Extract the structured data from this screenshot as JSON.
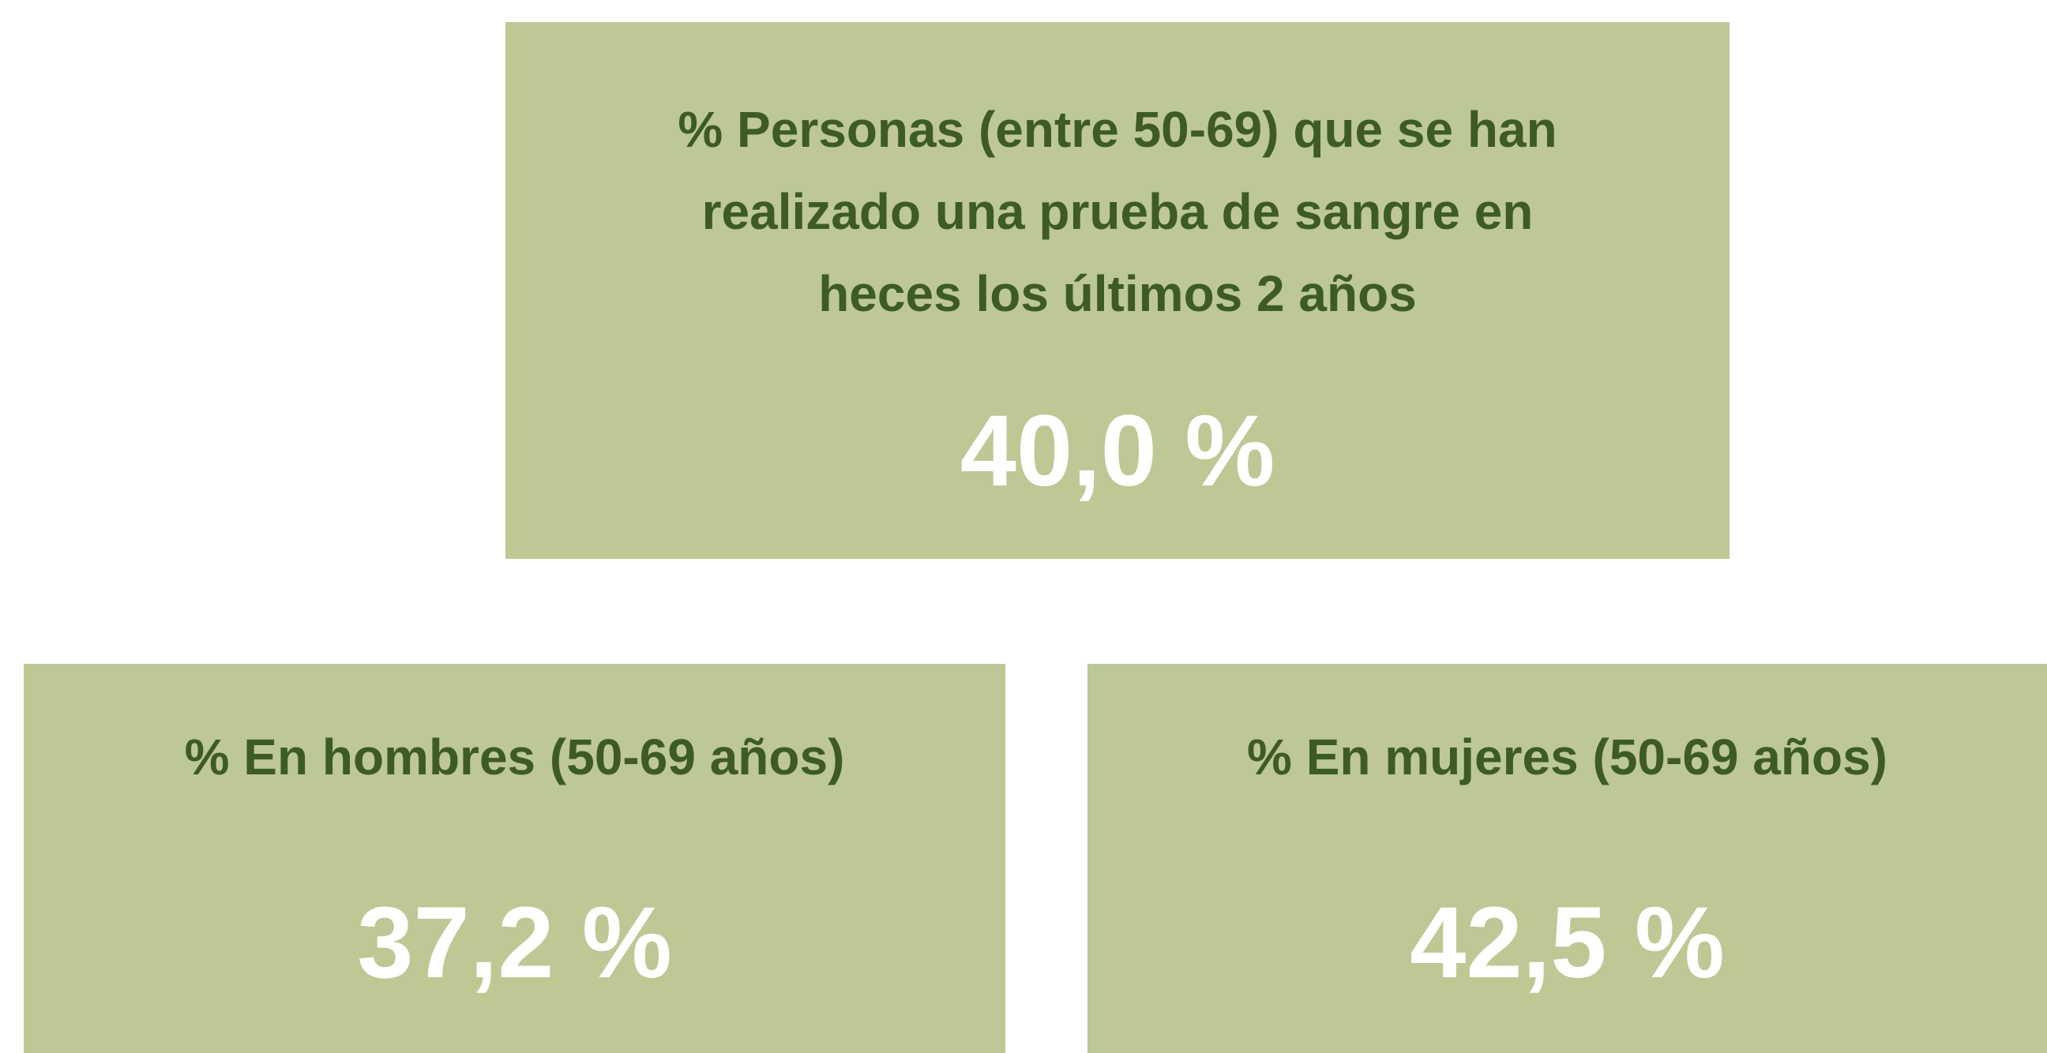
{
  "cards": [
    {
      "title_lines": [
        "% Personas (entre 50-69) que se han",
        "realizado una prueba de sangre en",
        "heces los últimos 2 años"
      ],
      "value": "40,0 %"
    },
    {
      "title_lines": [
        "% En hombres (50-69 años)"
      ],
      "value": "37,2 %"
    },
    {
      "title_lines": [
        "% En mujeres (50-69 años)"
      ],
      "value": "42,5 %"
    }
  ]
}
